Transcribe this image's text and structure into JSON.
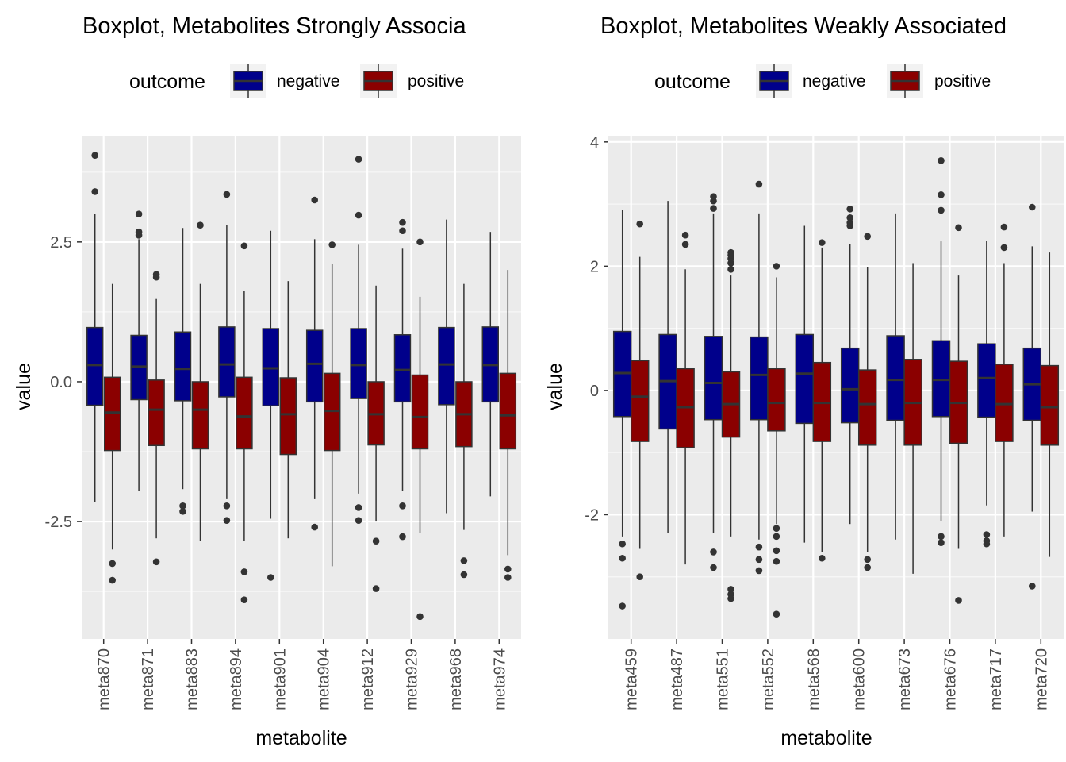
{
  "chart_data": [
    {
      "type": "boxplot",
      "title": "Boxplot, Metabolites Strongly Associa",
      "xlabel": "metabolite",
      "ylabel": "value",
      "ylim": [
        -4.6,
        4.4
      ],
      "yticks": [
        -2.5,
        0,
        2.5
      ],
      "ytick_labels": [
        "-2.5",
        "0.0",
        "2.5"
      ],
      "legend_title": "outcome",
      "legend_position": "top",
      "grid": true,
      "series": [
        {
          "name": "negative",
          "color": "#00008B"
        },
        {
          "name": "positive",
          "color": "#8B0000"
        }
      ],
      "categories": [
        "meta870",
        "meta871",
        "meta883",
        "meta894",
        "meta901",
        "meta904",
        "meta912",
        "meta929",
        "meta968",
        "meta974"
      ],
      "boxes": [
        {
          "category": "meta870",
          "series": "negative",
          "whisker_low": -2.15,
          "q1": -0.42,
          "median": 0.3,
          "q3": 0.97,
          "whisker_high": 3.0,
          "outliers": [
            3.4,
            4.05
          ]
        },
        {
          "category": "meta870",
          "series": "positive",
          "whisker_low": -3.0,
          "q1": -1.23,
          "median": -0.55,
          "q3": 0.08,
          "whisker_high": 1.75,
          "outliers": [
            -3.25,
            -3.55
          ]
        },
        {
          "category": "meta871",
          "series": "negative",
          "whisker_low": -1.95,
          "q1": -0.32,
          "median": 0.27,
          "q3": 0.83,
          "whisker_high": 2.55,
          "outliers": [
            2.62,
            2.68,
            3.0
          ]
        },
        {
          "category": "meta871",
          "series": "positive",
          "whisker_low": -2.8,
          "q1": -1.14,
          "median": -0.5,
          "q3": 0.03,
          "whisker_high": 1.48,
          "outliers": [
            1.87,
            1.92,
            -3.22
          ]
        },
        {
          "category": "meta883",
          "series": "negative",
          "whisker_low": -1.92,
          "q1": -0.34,
          "median": 0.23,
          "q3": 0.89,
          "whisker_high": 2.75,
          "outliers": [
            -2.22,
            -2.32
          ]
        },
        {
          "category": "meta883",
          "series": "positive",
          "whisker_low": -2.85,
          "q1": -1.2,
          "median": -0.5,
          "q3": 0.0,
          "whisker_high": 1.75,
          "outliers": [
            2.8
          ]
        },
        {
          "category": "meta894",
          "series": "negative",
          "whisker_low": -2.1,
          "q1": -0.27,
          "median": 0.31,
          "q3": 0.98,
          "whisker_high": 2.8,
          "outliers": [
            3.35,
            -2.22,
            -2.48
          ]
        },
        {
          "category": "meta894",
          "series": "positive",
          "whisker_low": -2.85,
          "q1": -1.2,
          "median": -0.62,
          "q3": 0.08,
          "whisker_high": 1.62,
          "outliers": [
            2.43,
            -3.4,
            -3.9
          ]
        },
        {
          "category": "meta901",
          "series": "negative",
          "whisker_low": -2.45,
          "q1": -0.43,
          "median": 0.24,
          "q3": 0.95,
          "whisker_high": 2.7,
          "outliers": [
            -3.5
          ]
        },
        {
          "category": "meta901",
          "series": "positive",
          "whisker_low": -2.8,
          "q1": -1.3,
          "median": -0.58,
          "q3": 0.07,
          "whisker_high": 1.8,
          "outliers": []
        },
        {
          "category": "meta904",
          "series": "negative",
          "whisker_low": -2.1,
          "q1": -0.36,
          "median": 0.32,
          "q3": 0.92,
          "whisker_high": 2.55,
          "outliers": [
            3.25,
            -2.6
          ]
        },
        {
          "category": "meta904",
          "series": "positive",
          "whisker_low": -3.3,
          "q1": -1.23,
          "median": -0.52,
          "q3": 0.15,
          "whisker_high": 2.1,
          "outliers": [
            2.45
          ]
        },
        {
          "category": "meta912",
          "series": "negative",
          "whisker_low": -2.0,
          "q1": -0.3,
          "median": 0.3,
          "q3": 0.95,
          "whisker_high": 2.45,
          "outliers": [
            2.98,
            3.98,
            -2.25,
            -2.48
          ]
        },
        {
          "category": "meta912",
          "series": "positive",
          "whisker_low": -2.5,
          "q1": -1.13,
          "median": -0.58,
          "q3": 0.0,
          "whisker_high": 1.72,
          "outliers": [
            -2.85,
            -3.7
          ]
        },
        {
          "category": "meta929",
          "series": "negative",
          "whisker_low": -1.95,
          "q1": -0.36,
          "median": 0.21,
          "q3": 0.84,
          "whisker_high": 2.38,
          "outliers": [
            2.7,
            2.85,
            -2.22,
            -2.77
          ]
        },
        {
          "category": "meta929",
          "series": "positive",
          "whisker_low": -2.7,
          "q1": -1.2,
          "median": -0.63,
          "q3": 0.12,
          "whisker_high": 1.52,
          "outliers": [
            2.5,
            -4.2
          ]
        },
        {
          "category": "meta968",
          "series": "negative",
          "whisker_low": -2.35,
          "q1": -0.41,
          "median": 0.31,
          "q3": 0.97,
          "whisker_high": 2.9,
          "outliers": []
        },
        {
          "category": "meta968",
          "series": "positive",
          "whisker_low": -2.65,
          "q1": -1.16,
          "median": -0.58,
          "q3": 0.0,
          "whisker_high": 1.75,
          "outliers": [
            -3.2,
            -3.45
          ]
        },
        {
          "category": "meta974",
          "series": "negative",
          "whisker_low": -2.05,
          "q1": -0.36,
          "median": 0.3,
          "q3": 0.98,
          "whisker_high": 2.68,
          "outliers": []
        },
        {
          "category": "meta974",
          "series": "positive",
          "whisker_low": -3.1,
          "q1": -1.2,
          "median": -0.6,
          "q3": 0.15,
          "whisker_high": 2.0,
          "outliers": [
            -3.35,
            -3.5
          ]
        }
      ]
    },
    {
      "type": "boxplot",
      "title": "Boxplot, Metabolites Weakly Associated",
      "xlabel": "metabolite",
      "ylabel": "value",
      "ylim": [
        -4.0,
        4.1
      ],
      "yticks": [
        -2,
        0,
        2,
        4
      ],
      "ytick_labels": [
        "-2",
        "0",
        "2",
        "4"
      ],
      "legend_title": "outcome",
      "legend_position": "top",
      "grid": true,
      "series": [
        {
          "name": "negative",
          "color": "#00008B"
        },
        {
          "name": "positive",
          "color": "#8B0000"
        }
      ],
      "categories": [
        "meta459",
        "meta487",
        "meta551",
        "meta552",
        "meta568",
        "meta600",
        "meta673",
        "meta676",
        "meta717",
        "meta720"
      ],
      "boxes": [
        {
          "category": "meta459",
          "series": "negative",
          "whisker_low": -2.35,
          "q1": -0.42,
          "median": 0.28,
          "q3": 0.95,
          "whisker_high": 2.9,
          "outliers": [
            -2.47,
            -2.7,
            -3.47
          ]
        },
        {
          "category": "meta459",
          "series": "positive",
          "whisker_low": -2.55,
          "q1": -0.82,
          "median": -0.1,
          "q3": 0.48,
          "whisker_high": 2.15,
          "outliers": [
            2.68,
            -3.0
          ]
        },
        {
          "category": "meta487",
          "series": "negative",
          "whisker_low": -2.3,
          "q1": -0.62,
          "median": 0.15,
          "q3": 0.9,
          "whisker_high": 3.05,
          "outliers": []
        },
        {
          "category": "meta487",
          "series": "positive",
          "whisker_low": -2.8,
          "q1": -0.92,
          "median": -0.27,
          "q3": 0.35,
          "whisker_high": 1.95,
          "outliers": [
            2.35,
            2.5
          ]
        },
        {
          "category": "meta551",
          "series": "negative",
          "whisker_low": -2.3,
          "q1": -0.47,
          "median": 0.12,
          "q3": 0.87,
          "whisker_high": 2.85,
          "outliers": [
            2.93,
            3.05,
            3.12,
            -2.6,
            -2.85
          ]
        },
        {
          "category": "meta551",
          "series": "positive",
          "whisker_low": -2.35,
          "q1": -0.75,
          "median": -0.22,
          "q3": 0.3,
          "whisker_high": 1.85,
          "outliers": [
            1.95,
            2.05,
            2.12,
            2.18,
            2.22,
            -3.2,
            -3.28,
            -3.35
          ]
        },
        {
          "category": "meta552",
          "series": "negative",
          "whisker_low": -2.4,
          "q1": -0.47,
          "median": 0.25,
          "q3": 0.86,
          "whisker_high": 2.85,
          "outliers": [
            3.32,
            -2.52,
            -2.72,
            -2.9
          ]
        },
        {
          "category": "meta552",
          "series": "positive",
          "whisker_low": -2.15,
          "q1": -0.65,
          "median": -0.2,
          "q3": 0.35,
          "whisker_high": 1.82,
          "outliers": [
            2.0,
            -2.22,
            -2.35,
            -2.58,
            -2.75,
            -3.6
          ]
        },
        {
          "category": "meta568",
          "series": "negative",
          "whisker_low": -2.45,
          "q1": -0.53,
          "median": 0.27,
          "q3": 0.9,
          "whisker_high": 2.65,
          "outliers": []
        },
        {
          "category": "meta568",
          "series": "positive",
          "whisker_low": -2.6,
          "q1": -0.82,
          "median": -0.2,
          "q3": 0.45,
          "whisker_high": 2.3,
          "outliers": [
            2.38,
            -2.7
          ]
        },
        {
          "category": "meta600",
          "series": "negative",
          "whisker_low": -2.15,
          "q1": -0.52,
          "median": 0.02,
          "q3": 0.68,
          "whisker_high": 2.35,
          "outliers": [
            2.65,
            2.7,
            2.78,
            2.92
          ]
        },
        {
          "category": "meta600",
          "series": "positive",
          "whisker_low": -2.6,
          "q1": -0.88,
          "median": -0.22,
          "q3": 0.33,
          "whisker_high": 1.98,
          "outliers": [
            2.48,
            -2.72,
            -2.85
          ]
        },
        {
          "category": "meta673",
          "series": "negative",
          "whisker_low": -2.4,
          "q1": -0.48,
          "median": 0.17,
          "q3": 0.88,
          "whisker_high": 2.85,
          "outliers": []
        },
        {
          "category": "meta673",
          "series": "positive",
          "whisker_low": -2.95,
          "q1": -0.88,
          "median": -0.2,
          "q3": 0.5,
          "whisker_high": 2.05,
          "outliers": []
        },
        {
          "category": "meta676",
          "series": "negative",
          "whisker_low": -2.1,
          "q1": -0.42,
          "median": 0.17,
          "q3": 0.8,
          "whisker_high": 2.4,
          "outliers": [
            2.9,
            3.15,
            3.7,
            -2.35,
            -2.45
          ]
        },
        {
          "category": "meta676",
          "series": "positive",
          "whisker_low": -2.55,
          "q1": -0.85,
          "median": -0.2,
          "q3": 0.47,
          "whisker_high": 1.85,
          "outliers": [
            2.62,
            -3.38
          ]
        },
        {
          "category": "meta717",
          "series": "negative",
          "whisker_low": -1.85,
          "q1": -0.43,
          "median": 0.2,
          "q3": 0.75,
          "whisker_high": 2.4,
          "outliers": [
            -2.32,
            -2.42,
            -2.47
          ]
        },
        {
          "category": "meta717",
          "series": "positive",
          "whisker_low": -2.35,
          "q1": -0.82,
          "median": -0.22,
          "q3": 0.42,
          "whisker_high": 2.05,
          "outliers": [
            2.3,
            2.63
          ]
        },
        {
          "category": "meta720",
          "series": "negative",
          "whisker_low": -1.95,
          "q1": -0.48,
          "median": 0.1,
          "q3": 0.68,
          "whisker_high": 2.32,
          "outliers": [
            2.95,
            -3.15
          ]
        },
        {
          "category": "meta720",
          "series": "positive",
          "whisker_low": -2.68,
          "q1": -0.88,
          "median": -0.27,
          "q3": 0.4,
          "whisker_high": 2.22,
          "outliers": []
        }
      ]
    }
  ]
}
